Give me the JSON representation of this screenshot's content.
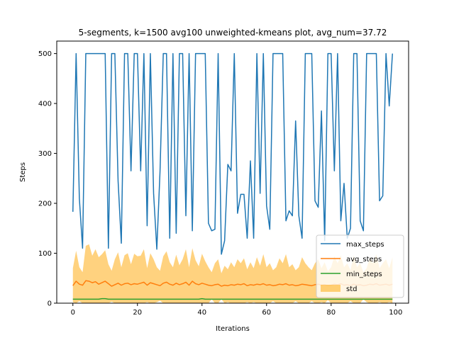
{
  "chart_data": {
    "type": "line",
    "title": "5-segments, k=1500 avg100 unweighted-kmeans plot, avg_num=37.72",
    "xlabel": "Iterations",
    "ylabel": "Steps",
    "xlim": [
      -5,
      104
    ],
    "ylim": [
      0,
      525
    ],
    "xticks": [
      0,
      20,
      40,
      60,
      80,
      100
    ],
    "yticks": [
      0,
      100,
      200,
      300,
      400,
      500
    ],
    "legend_position": "lower-right",
    "series": [
      {
        "name": "max_steps",
        "color": "#1f77b4",
        "values": [
          183,
          500,
          210,
          110,
          500,
          500,
          500,
          500,
          500,
          500,
          500,
          110,
          500,
          500,
          245,
          120,
          500,
          500,
          265,
          500,
          500,
          265,
          500,
          155,
          500,
          220,
          108,
          265,
          500,
          500,
          130,
          500,
          140,
          500,
          500,
          175,
          500,
          145,
          500,
          500,
          500,
          500,
          160,
          145,
          148,
          500,
          98,
          125,
          278,
          265,
          500,
          180,
          218,
          218,
          130,
          285,
          130,
          500,
          220,
          500,
          195,
          148,
          500,
          500,
          500,
          500,
          165,
          185,
          175,
          365,
          175,
          130,
          500,
          500,
          500,
          205,
          192,
          385,
          125,
          500,
          500,
          265,
          500,
          165,
          240,
          130,
          150,
          500,
          500,
          165,
          145,
          500,
          500,
          500,
          500,
          205,
          215,
          500,
          395,
          500
        ]
      },
      {
        "name": "avg_steps",
        "color": "#ff7f0e",
        "values": [
          35,
          44,
          38,
          36,
          45,
          44,
          41,
          43,
          38,
          41,
          44,
          39,
          34,
          37,
          40,
          36,
          39,
          40,
          37,
          39,
          38,
          40,
          42,
          36,
          41,
          39,
          37,
          35,
          40,
          42,
          38,
          36,
          40,
          37,
          39,
          42,
          36,
          44,
          39,
          37,
          40,
          38,
          36,
          35,
          37,
          38,
          34,
          36,
          35,
          37,
          36,
          38,
          37,
          39,
          35,
          37,
          36,
          38,
          37,
          39,
          36,
          37,
          35,
          36,
          38,
          37,
          39,
          36,
          37,
          35,
          36,
          38,
          37,
          36,
          35,
          37,
          38,
          36,
          37,
          35,
          36,
          38,
          37,
          39,
          36,
          37,
          35,
          38,
          36,
          37,
          35,
          36,
          38,
          37,
          39,
          36,
          37,
          38,
          36,
          38
        ]
      },
      {
        "name": "min_steps",
        "color": "#2ca02c",
        "values": [
          8,
          8,
          8,
          8,
          8,
          8,
          8,
          8,
          8,
          9,
          9,
          8,
          8,
          8,
          8,
          8,
          8,
          8,
          8,
          8,
          8,
          8,
          8,
          8,
          8,
          8,
          8,
          8,
          8,
          8,
          8,
          8,
          8,
          8,
          8,
          8,
          8,
          8,
          8,
          8,
          9,
          8,
          8,
          8,
          8,
          8,
          8,
          8,
          8,
          8,
          8,
          8,
          8,
          8,
          8,
          8,
          8,
          8,
          8,
          8,
          8,
          8,
          8,
          8,
          8,
          8,
          8,
          8,
          8,
          8,
          8,
          8,
          8,
          8,
          8,
          8,
          8,
          8,
          8,
          8,
          8,
          8,
          8,
          8,
          8,
          8,
          8,
          8,
          8,
          8,
          8,
          8,
          8,
          8,
          8,
          8,
          8,
          8,
          8,
          8
        ]
      },
      {
        "name": "std",
        "color": "#ffa500",
        "opacity": 0.5,
        "upper": [
          70,
          105,
          72,
          62,
          115,
          118,
          95,
          108,
          92,
          98,
          106,
          78,
          65,
          88,
          102,
          72,
          96,
          100,
          78,
          99,
          94,
          95,
          108,
          70,
          100,
          88,
          72,
          65,
          94,
          104,
          82,
          72,
          97,
          76,
          88,
          108,
          72,
          110,
          86,
          74,
          99,
          84,
          72,
          62,
          80,
          88,
          60,
          75,
          68,
          82,
          72,
          88,
          80,
          90,
          68,
          82,
          70,
          92,
          75,
          98,
          72,
          80,
          66,
          72,
          90,
          80,
          98,
          72,
          78,
          66,
          72,
          92,
          80,
          72,
          66,
          80,
          88,
          70,
          82,
          64,
          72,
          94,
          80,
          96,
          72,
          80,
          66,
          96,
          72,
          80,
          62,
          70,
          92,
          80,
          98,
          70,
          80,
          88,
          70,
          92
        ],
        "lower": [
          2,
          0,
          4,
          0,
          0,
          0,
          0,
          0,
          0,
          0,
          0,
          0,
          3,
          0,
          0,
          0,
          0,
          0,
          0,
          0,
          0,
          0,
          0,
          2,
          0,
          0,
          2,
          5,
          0,
          0,
          0,
          0,
          0,
          0,
          0,
          0,
          0,
          0,
          0,
          0,
          0,
          0,
          0,
          8,
          0,
          0,
          8,
          0,
          2,
          0,
          0,
          0,
          0,
          0,
          2,
          0,
          2,
          0,
          0,
          0,
          0,
          0,
          4,
          0,
          0,
          0,
          0,
          0,
          0,
          4,
          0,
          0,
          0,
          0,
          4,
          0,
          0,
          2,
          0,
          6,
          0,
          0,
          0,
          0,
          0,
          0,
          4,
          0,
          0,
          0,
          8,
          2,
          0,
          0,
          0,
          2,
          0,
          0,
          2,
          0
        ]
      }
    ]
  }
}
